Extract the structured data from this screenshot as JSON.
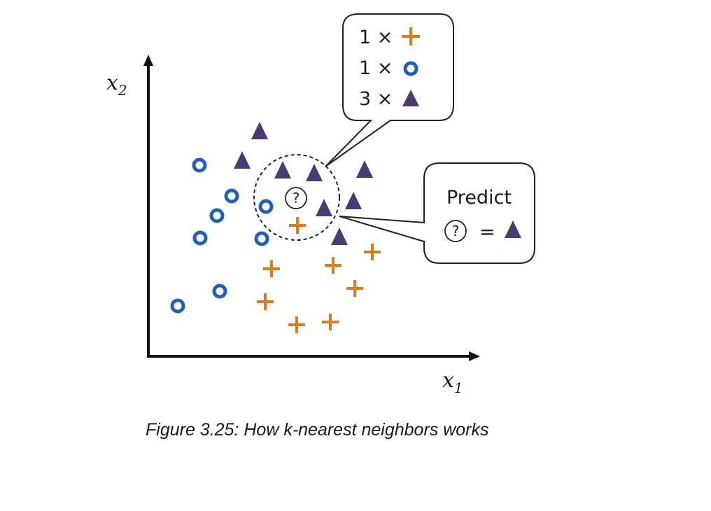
{
  "axes": {
    "x_label": "x",
    "x_subscript": "1",
    "y_label": "x",
    "y_subscript": "2"
  },
  "legend": {
    "cross_count": "1 ×",
    "circle_count": "1 ×",
    "triangle_count": "3 ×"
  },
  "prediction": {
    "title": "Predict",
    "query_symbol": "?",
    "equals": "="
  },
  "query_symbol": "?",
  "caption": "Figure 3.25: How k-nearest neighbors works",
  "colors": {
    "circle": "#1f5fbf",
    "cross": "#e07a1f",
    "triangle": "#4b3b73",
    "axis": "#111111"
  },
  "points": {
    "circles": [
      [
        285,
        236
      ],
      [
        331,
        280
      ],
      [
        310,
        308
      ],
      [
        286,
        340
      ],
      [
        380,
        295
      ],
      [
        374,
        341
      ],
      [
        314,
        416
      ],
      [
        254,
        437
      ]
    ],
    "triangles": [
      [
        371,
        187
      ],
      [
        346,
        229
      ],
      [
        404,
        243
      ],
      [
        449,
        247
      ],
      [
        521,
        242
      ],
      [
        505,
        287
      ],
      [
        463,
        297
      ],
      [
        485,
        338
      ]
    ],
    "crosses": [
      [
        425,
        322
      ],
      [
        388,
        384
      ],
      [
        476,
        379
      ],
      [
        532,
        360
      ],
      [
        507,
        412
      ],
      [
        379,
        431
      ],
      [
        424,
        464
      ],
      [
        472,
        460
      ]
    ]
  }
}
